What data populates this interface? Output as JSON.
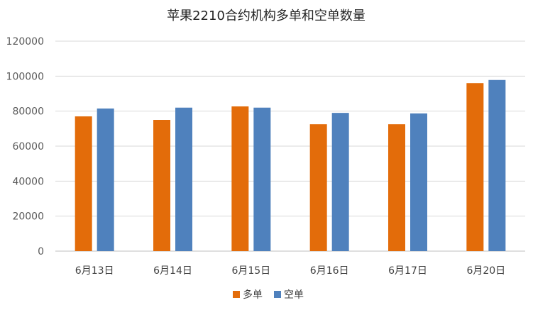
{
  "chart_data": {
    "type": "bar",
    "title": "苹果2210合约机构多单和空单数量",
    "xlabel": "",
    "ylabel": "",
    "categories": [
      "6月13日",
      "6月14日",
      "6月15日",
      "6月16日",
      "6月17日",
      "6月20日"
    ],
    "series": [
      {
        "name": "多单",
        "color": "#E36C0A",
        "values": [
          77000,
          75000,
          82700,
          72500,
          72500,
          96000
        ]
      },
      {
        "name": "空单",
        "color": "#4F81BD",
        "values": [
          81500,
          82000,
          82000,
          79000,
          78700,
          97800
        ]
      }
    ],
    "ylim": [
      0,
      120000
    ],
    "yticks": [
      0,
      20000,
      40000,
      60000,
      80000,
      100000,
      120000
    ],
    "grid": true,
    "legend_position": "bottom"
  }
}
